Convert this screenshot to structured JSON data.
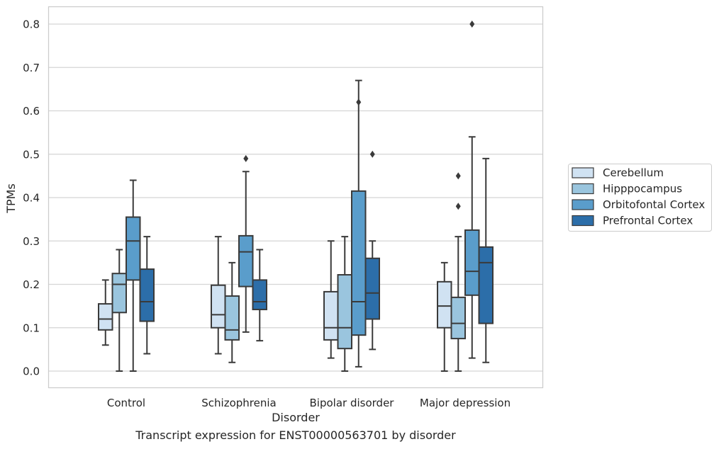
{
  "caption": "Transcript expression for ENST00000563701 by disorder",
  "chart_data": {
    "type": "box",
    "title": "",
    "xlabel": "Disorder",
    "ylabel": "TPMs",
    "ylim": [
      -0.04,
      0.84
    ],
    "yticks": [
      "0.0",
      "0.1",
      "0.2",
      "0.3",
      "0.4",
      "0.5",
      "0.6",
      "0.7",
      "0.8"
    ],
    "ytick_values": [
      0.0,
      0.1,
      0.2,
      0.3,
      0.4,
      0.5,
      0.6,
      0.7,
      0.8
    ],
    "grid": true,
    "legend_position": "right",
    "categories": [
      "Control",
      "Schizophrenia",
      "Bipolar disorder",
      "Major depression"
    ],
    "series": [
      {
        "name": "Cerebellum",
        "color": "#d0e2f2",
        "boxes": [
          {
            "whisker_low": 0.06,
            "q1": 0.095,
            "median": 0.12,
            "q3": 0.155,
            "whisker_high": 0.21,
            "outliers": []
          },
          {
            "whisker_low": 0.04,
            "q1": 0.1,
            "median": 0.13,
            "q3": 0.198,
            "whisker_high": 0.31,
            "outliers": []
          },
          {
            "whisker_low": 0.03,
            "q1": 0.072,
            "median": 0.1,
            "q3": 0.183,
            "whisker_high": 0.3,
            "outliers": []
          },
          {
            "whisker_low": 0.0,
            "q1": 0.1,
            "median": 0.15,
            "q3": 0.206,
            "whisker_high": 0.25,
            "outliers": []
          }
        ]
      },
      {
        "name": "Hipppocampus",
        "color": "#9ac5de",
        "boxes": [
          {
            "whisker_low": 0.0,
            "q1": 0.135,
            "median": 0.2,
            "q3": 0.225,
            "whisker_high": 0.28,
            "outliers": []
          },
          {
            "whisker_low": 0.02,
            "q1": 0.072,
            "median": 0.095,
            "q3": 0.173,
            "whisker_high": 0.25,
            "outliers": []
          },
          {
            "whisker_low": 0.0,
            "q1": 0.052,
            "median": 0.1,
            "q3": 0.222,
            "whisker_high": 0.31,
            "outliers": []
          },
          {
            "whisker_low": 0.0,
            "q1": 0.075,
            "median": 0.11,
            "q3": 0.17,
            "whisker_high": 0.31,
            "outliers": [
              0.38,
              0.45
            ]
          }
        ]
      },
      {
        "name": "Orbitofontal Cortex",
        "color": "#5a9dcb",
        "boxes": [
          {
            "whisker_low": 0.0,
            "q1": 0.21,
            "median": 0.3,
            "q3": 0.355,
            "whisker_high": 0.44,
            "outliers": []
          },
          {
            "whisker_low": 0.09,
            "q1": 0.195,
            "median": 0.275,
            "q3": 0.312,
            "whisker_high": 0.46,
            "outliers": [
              0.49
            ]
          },
          {
            "whisker_low": 0.01,
            "q1": 0.083,
            "median": 0.16,
            "q3": 0.415,
            "whisker_high": 0.67,
            "outliers": [
              0.62
            ]
          },
          {
            "whisker_low": 0.03,
            "q1": 0.175,
            "median": 0.23,
            "q3": 0.325,
            "whisker_high": 0.54,
            "outliers": [
              0.8
            ]
          }
        ]
      },
      {
        "name": "Prefrontal Cortex",
        "color": "#2c6ea9",
        "boxes": [
          {
            "whisker_low": 0.04,
            "q1": 0.115,
            "median": 0.16,
            "q3": 0.235,
            "whisker_high": 0.31,
            "outliers": []
          },
          {
            "whisker_low": 0.07,
            "q1": 0.142,
            "median": 0.16,
            "q3": 0.21,
            "whisker_high": 0.28,
            "outliers": []
          },
          {
            "whisker_low": 0.05,
            "q1": 0.12,
            "median": 0.18,
            "q3": 0.26,
            "whisker_high": 0.3,
            "outliers": [
              0.5
            ]
          },
          {
            "whisker_low": 0.02,
            "q1": 0.11,
            "median": 0.25,
            "q3": 0.286,
            "whisker_high": 0.49,
            "outliers": []
          }
        ]
      }
    ]
  }
}
